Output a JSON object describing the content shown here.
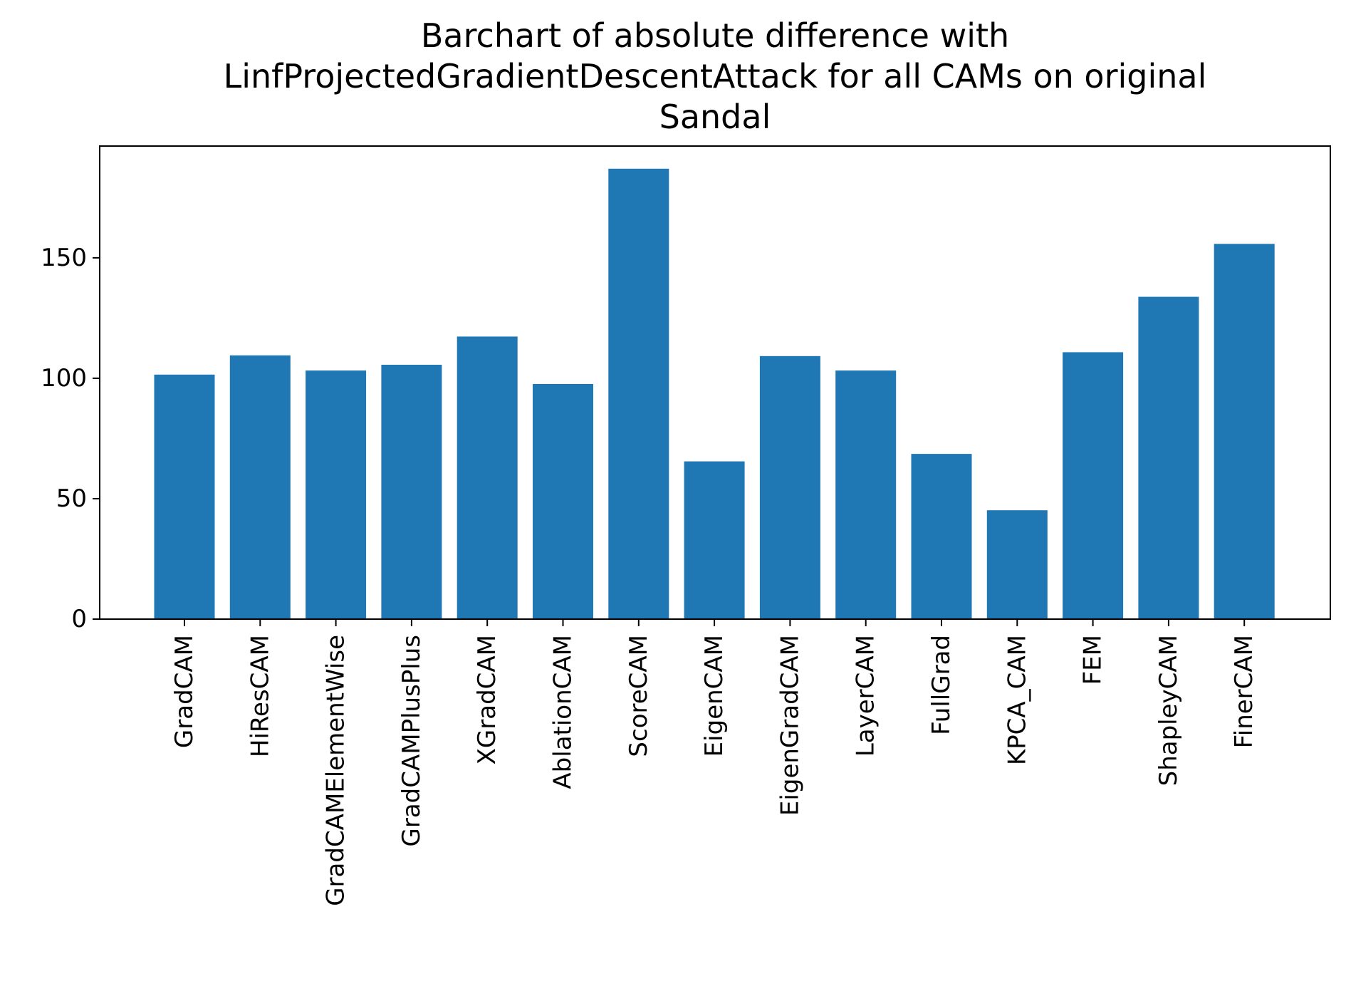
{
  "chart_data": {
    "type": "bar",
    "title_lines": [
      "Barchart of absolute difference with",
      "LinfProjectedGradientDescentAttack for all CAMs on original",
      "Sandal"
    ],
    "xlabel": "",
    "ylabel": "",
    "categories": [
      "GradCAM",
      "HiResCAM",
      "GradCAMElementWise",
      "GradCAMPlusPlus",
      "XGradCAM",
      "AblationCAM",
      "ScoreCAM",
      "EigenCAM",
      "EigenGradCAM",
      "LayerCAM",
      "FullGrad",
      "KPCA_CAM",
      "FEM",
      "ShapleyCAM",
      "FinerCAM"
    ],
    "values": [
      101.5,
      109.5,
      103.2,
      105.6,
      117.3,
      97.6,
      187.0,
      65.5,
      109.2,
      103.2,
      68.6,
      45.2,
      110.8,
      133.8,
      155.8
    ],
    "ylim": [
      0,
      196.4
    ],
    "yticks": [
      0,
      50,
      100,
      150
    ],
    "bar_color": "#1f77b4",
    "grid": false,
    "legend": "none"
  }
}
